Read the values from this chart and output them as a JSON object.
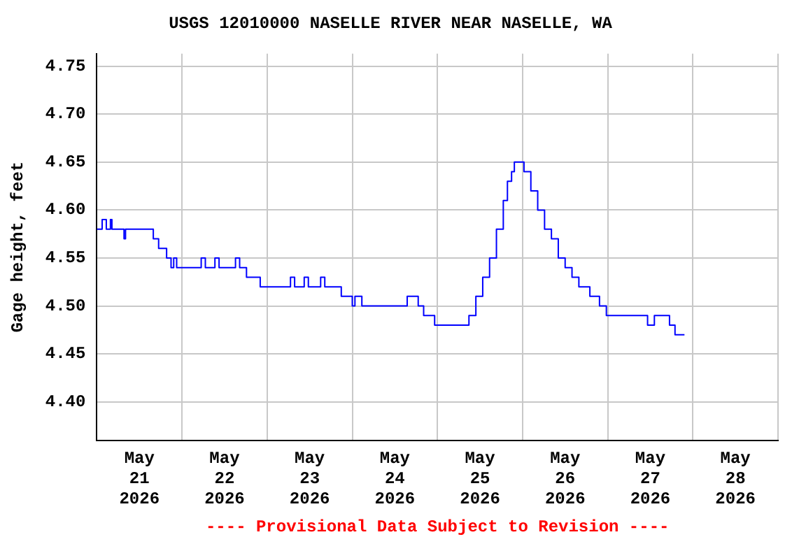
{
  "chart_data": {
    "type": "step",
    "title": "USGS 12010000 NASELLE RIVER NEAR NASELLE, WA",
    "ylabel": "Gage height, feet",
    "annotations": [
      "---- Provisional Data Subject to Revision ----"
    ],
    "xlim": [
      "2026-05-21T00:00",
      "2026-05-29T00:00"
    ],
    "xticks": [
      {
        "value": "2026-05-21T00:00",
        "label": null
      },
      {
        "value": "2026-05-21T12:00",
        "label": "May 21 2026"
      },
      {
        "value": "2026-05-22T00:00",
        "label": null
      },
      {
        "value": "2026-05-22T12:00",
        "label": "May 22 2026"
      },
      {
        "value": "2026-05-23T00:00",
        "label": null
      },
      {
        "value": "2026-05-23T12:00",
        "label": "May 23 2026"
      },
      {
        "value": "2026-05-24T00:00",
        "label": null
      },
      {
        "value": "2026-05-24T12:00",
        "label": "May 24 2026"
      },
      {
        "value": "2026-05-25T00:00",
        "label": null
      },
      {
        "value": "2026-05-25T12:00",
        "label": "May 25 2026"
      },
      {
        "value": "2026-05-26T00:00",
        "label": null
      },
      {
        "value": "2026-05-26T12:00",
        "label": "May 26 2026"
      },
      {
        "value": "2026-05-27T00:00",
        "label": null
      },
      {
        "value": "2026-05-27T12:00",
        "label": "May 27 2026"
      },
      {
        "value": "2026-05-28T00:00",
        "label": null
      },
      {
        "value": "2026-05-28T12:00",
        "label": "May 28 2026"
      },
      {
        "value": "2026-05-29T00:00",
        "label": null
      }
    ],
    "ylim": [
      4.36,
      4.763
    ],
    "yticks": [
      {
        "value": 4.4,
        "label": "4.40"
      },
      4.45,
      {
        "value": 4.5,
        "label": "4.50"
      },
      4.55,
      {
        "value": 4.6,
        "label": "4.60"
      },
      4.65,
      {
        "value": 4.7,
        "label": "4.70"
      },
      4.75
    ],
    "grid": true,
    "x": [
      "2026-05-21T00:00",
      "2026-05-21T01:30",
      "2026-05-21T02:40",
      "2026-05-21T03:50",
      "2026-05-21T04:15",
      "2026-05-21T07:40",
      "2026-05-21T08:05",
      "2026-05-21T15:55",
      "2026-05-21T17:25",
      "2026-05-21T19:40",
      "2026-05-21T20:55",
      "2026-05-21T21:40",
      "2026-05-21T22:30",
      "2026-05-22T05:25",
      "2026-05-22T06:35",
      "2026-05-22T09:17",
      "2026-05-22T10:27",
      "2026-05-22T15:05",
      "2026-05-22T16:15",
      "2026-05-22T18:11",
      "2026-05-22T22:03",
      "2026-05-23T06:35",
      "2026-05-23T07:45",
      "2026-05-23T10:27",
      "2026-05-23T11:37",
      "2026-05-23T15:05",
      "2026-05-23T16:15",
      "2026-05-23T20:54",
      "2026-05-24T00:00",
      "2026-05-24T00:45",
      "2026-05-24T02:42",
      "2026-05-24T15:29",
      "2026-05-24T18:35",
      "2026-05-24T20:07",
      "2026-05-24T23:13",
      "2026-05-25T08:06",
      "2026-05-25T08:53",
      "2026-05-25T10:50",
      "2026-05-25T12:46",
      "2026-05-25T14:42",
      "2026-05-25T16:38",
      "2026-05-25T18:34",
      "2026-05-25T19:44",
      "2026-05-25T20:54",
      "2026-05-25T21:41",
      "2026-05-25T23:37",
      "2026-05-26T00:24",
      "2026-05-26T02:20",
      "2026-05-26T04:16",
      "2026-05-26T06:12",
      "2026-05-26T08:08",
      "2026-05-26T10:04",
      "2026-05-26T12:00",
      "2026-05-26T13:56",
      "2026-05-26T15:52",
      "2026-05-26T18:58",
      "2026-05-26T21:41",
      "2026-05-26T23:37",
      "2026-05-27T11:14",
      "2026-05-27T13:09",
      "2026-05-27T17:01",
      "2026-05-27T17:25",
      "2026-05-27T18:58",
      "2026-05-27T21:38"
    ],
    "series": [
      {
        "color": "#0000ff",
        "values": [
          4.58,
          4.59,
          4.58,
          4.59,
          4.58,
          4.57,
          4.58,
          4.57,
          4.56,
          4.55,
          4.54,
          4.55,
          4.54,
          4.55,
          4.54,
          4.55,
          4.54,
          4.55,
          4.54,
          4.53,
          4.52,
          4.53,
          4.52,
          4.53,
          4.52,
          4.53,
          4.52,
          4.51,
          4.5,
          4.51,
          4.5,
          4.51,
          4.5,
          4.49,
          4.48,
          4.48,
          4.49,
          4.51,
          4.53,
          4.55,
          4.58,
          4.61,
          4.63,
          4.64,
          4.65,
          4.65,
          4.64,
          4.62,
          4.6,
          4.58,
          4.57,
          4.55,
          4.54,
          4.53,
          4.52,
          4.51,
          4.5,
          4.49,
          4.48,
          4.49,
          4.49,
          4.48,
          4.47,
          4.47
        ]
      }
    ]
  }
}
